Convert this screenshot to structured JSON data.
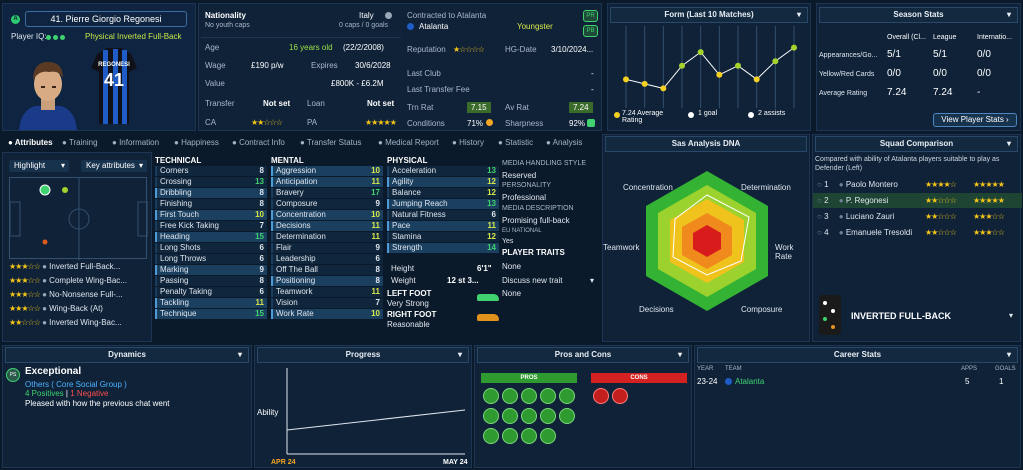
{
  "player": {
    "number_name": "41. Pierre Giorgio Regonesi",
    "iq_label": "Player IQ:",
    "role": "Physical Inverted Full-Back",
    "shirt_name": "REGONESI",
    "shirt_number": "41"
  },
  "info": {
    "nationality_label": "Nationality",
    "nationality": "Italy",
    "youth_caps": "No youth caps",
    "caps": "0 caps / 0 goals",
    "contracted": "Contracted to Atalanta",
    "club": "Atalanta",
    "status": "Youngster",
    "age_label": "Age",
    "age": "16 years old",
    "dob": "(22/2/2008)",
    "reputation_label": "Reputation",
    "hg_label": "HG-Date",
    "hg_date": "3/10/2024...",
    "wage_label": "Wage",
    "wage": "£190 p/w",
    "expires_label": "Expires",
    "expires": "30/6/2028",
    "last_club_label": "Last Club",
    "last_club": "-",
    "value_label": "Value",
    "value": "£800K - £6.2M",
    "last_fee_label": "Last Transfer Fee",
    "last_fee": "-",
    "transfer_label": "Transfer",
    "transfer": "Not set",
    "loan_label": "Loan",
    "loan": "Not set",
    "trn_label": "Trn Rat",
    "trn": "7.15",
    "avrat_label": "Av Rat",
    "avrat": "7.24",
    "ca_label": "CA",
    "pa_label": "PA",
    "conditions_label": "Conditions",
    "conditions": "71%",
    "sharpness_label": "Sharpness",
    "sharpness": "92%"
  },
  "badges": {
    "pr": "PR",
    "pb": "PB"
  },
  "form": {
    "title": "Form (Last 10 Matches)",
    "avg": "7.24 Average Rating",
    "goals": "1 goal",
    "assists": "2 assists",
    "points": [
      7.0,
      6.9,
      6.8,
      7.3,
      7.6,
      7.1,
      7.3,
      7.0,
      7.4,
      7.7
    ]
  },
  "season": {
    "title": "Season Stats",
    "cols": [
      "Overall (Cl...",
      "League",
      "Internatio..."
    ],
    "rows": [
      {
        "label": "Appearances/Go...",
        "v": [
          "5/1",
          "5/1",
          "0/0"
        ]
      },
      {
        "label": "Yellow/Red Cards",
        "v": [
          "0/0",
          "0/0",
          "0/0"
        ]
      },
      {
        "label": "Average Rating",
        "v": [
          "7.24",
          "7.24",
          "-"
        ]
      }
    ],
    "button": "View Player Stats"
  },
  "tabs": [
    "Attributes",
    "Training",
    "Information",
    "Happiness",
    "Contract Info",
    "Transfer Status",
    "Medical Report",
    "History",
    "Statistic",
    "Analysis"
  ],
  "highlight": "Highlight",
  "key_attr": "Key attributes",
  "roles": [
    {
      "name": "Inverted Full-Back...",
      "stars": "★★★☆☆"
    },
    {
      "name": "Complete Wing-Bac...",
      "stars": "★★★☆☆"
    },
    {
      "name": "No-Nonsense Full-...",
      "stars": "★★★☆☆"
    },
    {
      "name": "Wing-Back (At)",
      "stars": "★★★☆☆"
    },
    {
      "name": "Inverted Wing-Bac...",
      "stars": "★★☆☆☆"
    }
  ],
  "technical": {
    "title": "TECHNICAL",
    "items": [
      [
        "Corners",
        "8"
      ],
      [
        "Crossing",
        "13"
      ],
      [
        "Dribbling",
        "8"
      ],
      [
        "Finishing",
        "8"
      ],
      [
        "First Touch",
        "10"
      ],
      [
        "Free Kick Taking",
        "7"
      ],
      [
        "Heading",
        "15"
      ],
      [
        "Long Shots",
        "6"
      ],
      [
        "Long Throws",
        "6"
      ],
      [
        "Marking",
        "9"
      ],
      [
        "Passing",
        "8"
      ],
      [
        "Penalty Taking",
        "6"
      ],
      [
        "Tackling",
        "11"
      ],
      [
        "Technique",
        "15"
      ]
    ]
  },
  "mental": {
    "title": "MENTAL",
    "items": [
      [
        "Aggression",
        "10"
      ],
      [
        "Anticipation",
        "11"
      ],
      [
        "Bravery",
        "17"
      ],
      [
        "Composure",
        "9"
      ],
      [
        "Concentration",
        "10"
      ],
      [
        "Decisions",
        "11"
      ],
      [
        "Determination",
        "11"
      ],
      [
        "Flair",
        "9"
      ],
      [
        "Leadership",
        "6"
      ],
      [
        "Off The Ball",
        "8"
      ],
      [
        "Positioning",
        "8"
      ],
      [
        "Teamwork",
        "11"
      ],
      [
        "Vision",
        "7"
      ],
      [
        "Work Rate",
        "10"
      ]
    ]
  },
  "physical": {
    "title": "PHYSICAL",
    "items": [
      [
        "Acceleration",
        "13"
      ],
      [
        "Agility",
        "12"
      ],
      [
        "Balance",
        "12"
      ],
      [
        "Jumping Reach",
        "13"
      ],
      [
        "Natural Fitness",
        "6"
      ],
      [
        "Pace",
        "11"
      ],
      [
        "Stamina",
        "12"
      ],
      [
        "Strength",
        "14"
      ]
    ]
  },
  "body": {
    "height_label": "Height",
    "height": "6'1\"",
    "weight_label": "Weight",
    "weight": "12 st 3...",
    "left_foot_label": "LEFT FOOT",
    "left_foot": "Very Strong",
    "right_foot_label": "RIGHT FOOT",
    "right_foot": "Reasonable"
  },
  "media": {
    "style_label": "MEDIA HANDLING STYLE",
    "style": "Reserved",
    "personality_label": "PERSONALITY",
    "personality": "Professional",
    "desc_label": "MEDIA DESCRIPTION",
    "desc": "Promising full-back",
    "eu_label": "EU NATIONAL",
    "eu": "Yes",
    "traits_label": "PLAYER TRAITS",
    "traits": "None",
    "discuss": "Discuss new trait",
    "discuss_val": "None"
  },
  "dna": {
    "title": "Sas Analysis DNA",
    "labels": [
      "Concentration",
      "Determination",
      "Work Rate",
      "Composure",
      "Decisions",
      "Teamwork"
    ]
  },
  "squad": {
    "title": "Squad Comparison",
    "desc": "Compared with ability of Atalanta players suitable to play as Defender (Left)",
    "rows": [
      {
        "n": "1",
        "name": "Paolo Montero",
        "a": "★★★★☆",
        "b": "★★★★★"
      },
      {
        "n": "2",
        "name": "P. Regonesi",
        "a": "★★☆☆☆",
        "b": "★★★★★"
      },
      {
        "n": "3",
        "name": "Luciano Zauri",
        "a": "★★☆☆☆",
        "b": "★★★☆☆"
      },
      {
        "n": "4",
        "name": "Emanuele Tresoldi",
        "a": "★★☆☆☆",
        "b": "★★★☆☆"
      }
    ],
    "role_title": "INVERTED FULL-BACK"
  },
  "dynamics": {
    "title": "Dynamics",
    "level": "Exceptional",
    "group": "Others ( Core Social Group )",
    "positives": "4 Positives",
    "negatives": "1 Negative",
    "note": "Pleased with how the previous chat went",
    "badge": "PS"
  },
  "progress": {
    "title": "Progress",
    "ylabel": "Ability",
    "start": "APR 24",
    "end": "MAY 24"
  },
  "proscons": {
    "title": "Pros and Cons",
    "pros": "PROS",
    "cons": "CONS"
  },
  "career": {
    "title": "Career Stats",
    "year_h": "YEAR",
    "team_h": "TEAM",
    "apps_h": "APPS",
    "goals_h": "GOALS",
    "rows": [
      {
        "year": "23-24",
        "team": "Atalanta",
        "apps": "5",
        "goals": "1"
      }
    ]
  },
  "colors": {
    "accent": "#4c9bd6",
    "good": "#3fd26f",
    "warn": "#f5d020",
    "bad": "#ff4d4d"
  }
}
